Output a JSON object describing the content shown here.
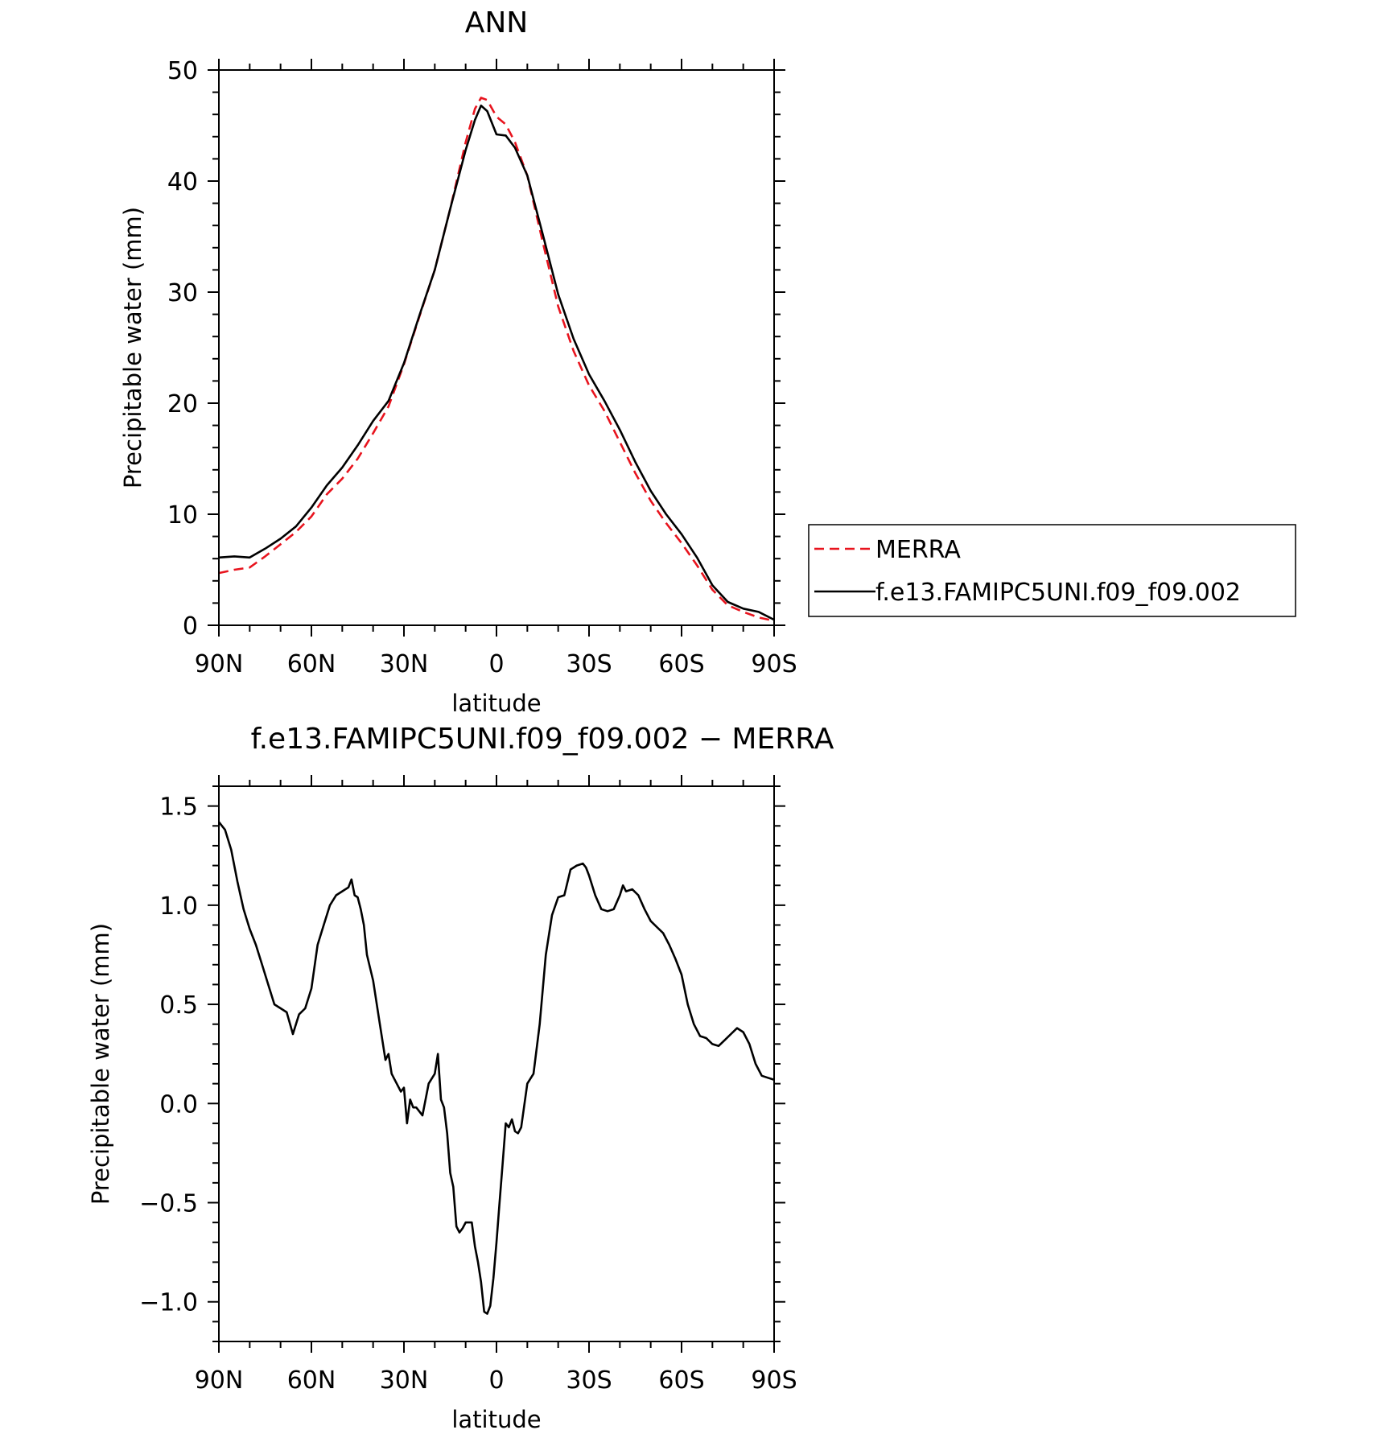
{
  "chart_data": [
    {
      "type": "line",
      "title": "ANN",
      "xlabel": "latitude",
      "ylabel": "Precipitable water (mm)",
      "xlim": [
        90,
        -90
      ],
      "ylim": [
        0,
        50
      ],
      "x_ticks": [
        {
          "value": 90,
          "label": "90N"
        },
        {
          "value": 60,
          "label": "60N"
        },
        {
          "value": 30,
          "label": "30N"
        },
        {
          "value": 0,
          "label": "0"
        },
        {
          "value": -30,
          "label": "30S"
        },
        {
          "value": -60,
          "label": "60S"
        },
        {
          "value": -90,
          "label": "90S"
        }
      ],
      "y_ticks": [
        {
          "value": 0,
          "label": "0"
        },
        {
          "value": 10,
          "label": "10"
        },
        {
          "value": 20,
          "label": "20"
        },
        {
          "value": 30,
          "label": "30"
        },
        {
          "value": 40,
          "label": "40"
        },
        {
          "value": 50,
          "label": "50"
        }
      ],
      "grid": false,
      "legend_position": "right",
      "series": [
        {
          "name": "MERRA",
          "color": "#e8141e",
          "dash": true,
          "x": [
            90,
            85,
            80,
            75,
            70,
            65,
            60,
            55,
            50,
            45,
            40,
            35,
            30,
            25,
            20,
            15,
            10,
            7,
            5,
            3,
            0,
            -3,
            -6,
            -10,
            -15,
            -20,
            -25,
            -30,
            -35,
            -40,
            -45,
            -50,
            -55,
            -60,
            -65,
            -70,
            -75,
            -80,
            -85,
            -90
          ],
          "values": [
            4.7,
            5.0,
            5.2,
            6.2,
            7.3,
            8.4,
            9.8,
            11.8,
            13.2,
            15.0,
            17.3,
            19.7,
            23.5,
            27.8,
            32.0,
            37.5,
            43.5,
            46.5,
            47.5,
            47.3,
            45.8,
            45.1,
            43.5,
            40.5,
            34.5,
            28.7,
            24.7,
            21.6,
            19.3,
            16.5,
            13.7,
            11.2,
            9.2,
            7.4,
            5.4,
            3.2,
            1.8,
            1.2,
            0.7,
            0.4
          ]
        },
        {
          "name": "f.e13.FAMIPC5UNI.f09_f09.002",
          "color": "#000000",
          "dash": false,
          "x": [
            90,
            85,
            80,
            75,
            70,
            65,
            60,
            55,
            50,
            45,
            40,
            35,
            30,
            25,
            20,
            15,
            10,
            7,
            5,
            3,
            0,
            -3,
            -6,
            -10,
            -15,
            -20,
            -25,
            -30,
            -35,
            -40,
            -45,
            -50,
            -55,
            -60,
            -65,
            -70,
            -75,
            -80,
            -85,
            -90
          ],
          "values": [
            6.1,
            6.2,
            6.1,
            6.9,
            7.8,
            8.9,
            10.6,
            12.6,
            14.2,
            16.2,
            18.4,
            20.2,
            23.6,
            27.9,
            32.0,
            37.5,
            42.8,
            45.5,
            46.8,
            46.3,
            44.2,
            44.1,
            43.0,
            40.5,
            35.2,
            29.8,
            25.8,
            22.6,
            20.2,
            17.6,
            14.7,
            12.1,
            10.0,
            8.2,
            6.1,
            3.6,
            2.1,
            1.5,
            1.2,
            0.5
          ]
        }
      ]
    },
    {
      "type": "line",
      "title": "f.e13.FAMIPC5UNI.f09_f09.002 − MERRA",
      "xlabel": "latitude",
      "ylabel": "Precipitable water (mm)",
      "xlim": [
        90,
        -90
      ],
      "ylim": [
        -1.2,
        1.6
      ],
      "x_ticks": [
        {
          "value": 90,
          "label": "90N"
        },
        {
          "value": 60,
          "label": "60N"
        },
        {
          "value": 30,
          "label": "30N"
        },
        {
          "value": 0,
          "label": "0"
        },
        {
          "value": -30,
          "label": "30S"
        },
        {
          "value": -60,
          "label": "60S"
        },
        {
          "value": -90,
          "label": "90S"
        }
      ],
      "y_ticks": [
        {
          "value": -1.0,
          "label": "−1.0"
        },
        {
          "value": -0.5,
          "label": "−0.5"
        },
        {
          "value": 0.0,
          "label": "0.0"
        },
        {
          "value": 0.5,
          "label": "0.5"
        },
        {
          "value": 1.0,
          "label": "1.0"
        },
        {
          "value": 1.5,
          "label": "1.5"
        }
      ],
      "grid": false,
      "series": [
        {
          "color": "#000000",
          "dash": false,
          "x": [
            90,
            88,
            86,
            84,
            82,
            80,
            78,
            76,
            74,
            72,
            70,
            68,
            66,
            65,
            64,
            62,
            60,
            58,
            56,
            54,
            52,
            50,
            48,
            47,
            46,
            45,
            44,
            43,
            42,
            40,
            38,
            36,
            35,
            34,
            33,
            31,
            30,
            29,
            28,
            27,
            26,
            24,
            22,
            20,
            19,
            18,
            17,
            16,
            15,
            14,
            13,
            12,
            11,
            10,
            8,
            7,
            6,
            5,
            4,
            3,
            2,
            1,
            0,
            -1,
            -2,
            -3,
            -4,
            -5,
            -6,
            -7,
            -8,
            -10,
            -12,
            -14,
            -16,
            -18,
            -20,
            -22,
            -24,
            -26,
            -28,
            -29,
            -30,
            -32,
            -34,
            -36,
            -38,
            -40,
            -41,
            -42,
            -44,
            -46,
            -48,
            -50,
            -52,
            -54,
            -56,
            -58,
            -60,
            -62,
            -64,
            -66,
            -68,
            -70,
            -72,
            -74,
            -76,
            -78,
            -80,
            -82,
            -84,
            -86,
            -88,
            -90
          ],
          "values": [
            1.42,
            1.38,
            1.28,
            1.12,
            0.98,
            0.88,
            0.8,
            0.7,
            0.6,
            0.5,
            0.48,
            0.46,
            0.35,
            0.4,
            0.45,
            0.48,
            0.58,
            0.8,
            0.9,
            1.0,
            1.05,
            1.07,
            1.09,
            1.13,
            1.05,
            1.04,
            0.98,
            0.9,
            0.75,
            0.62,
            0.42,
            0.22,
            0.25,
            0.15,
            0.12,
            0.06,
            0.08,
            -0.1,
            0.02,
            -0.02,
            -0.02,
            -0.06,
            0.1,
            0.15,
            0.25,
            0.02,
            -0.02,
            -0.15,
            -0.35,
            -0.42,
            -0.62,
            -0.65,
            -0.63,
            -0.6,
            -0.6,
            -0.72,
            -0.8,
            -0.9,
            -1.05,
            -1.06,
            -1.02,
            -0.88,
            -0.7,
            -0.5,
            -0.3,
            -0.1,
            -0.12,
            -0.08,
            -0.14,
            -0.15,
            -0.12,
            0.1,
            0.15,
            0.4,
            0.75,
            0.95,
            1.04,
            1.05,
            1.18,
            1.2,
            1.21,
            1.19,
            1.15,
            1.05,
            0.98,
            0.97,
            0.98,
            1.05,
            1.1,
            1.07,
            1.08,
            1.05,
            0.98,
            0.92,
            0.89,
            0.86,
            0.8,
            0.73,
            0.65,
            0.5,
            0.4,
            0.34,
            0.33,
            0.3,
            0.29,
            0.32,
            0.35,
            0.38,
            0.36,
            0.3,
            0.2,
            0.14,
            0.13,
            0.12
          ]
        }
      ]
    }
  ]
}
